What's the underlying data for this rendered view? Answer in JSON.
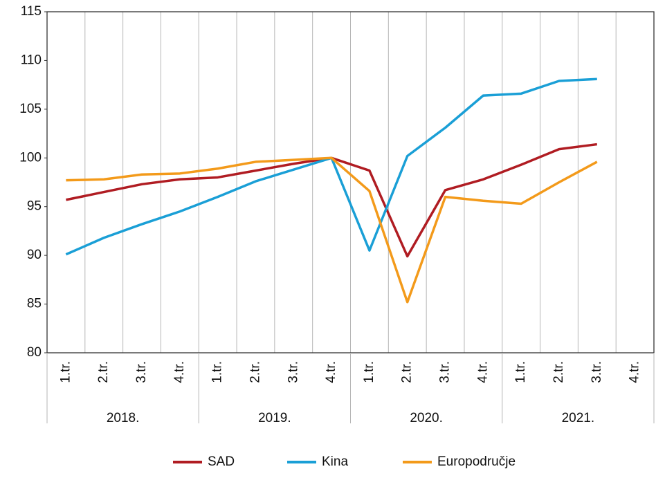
{
  "chart_data": {
    "type": "line",
    "categories": [
      "1.tr.",
      "2.tr.",
      "3.tr.",
      "4.tr.",
      "1.tr.",
      "2.tr.",
      "3.tr.",
      "4.tr.",
      "1.tr.",
      "2.tr.",
      "3.tr.",
      "4.tr.",
      "1.tr.",
      "2.tr.",
      "3.tr.",
      "4.tr."
    ],
    "groups": [
      "2018.",
      "2019.",
      "2020.",
      "2021."
    ],
    "series": [
      {
        "name": "SAD",
        "color": "#b01c22",
        "values": [
          95.7,
          96.5,
          97.3,
          97.8,
          98.0,
          98.7,
          99.4,
          100,
          98.7,
          89.9,
          96.7,
          97.8,
          99.3,
          100.9,
          101.4,
          null
        ]
      },
      {
        "name": "Kina",
        "color": "#1a9fd6",
        "values": [
          90.1,
          91.8,
          93.2,
          94.5,
          96.0,
          97.6,
          98.8,
          100,
          90.5,
          100.2,
          103.1,
          106.4,
          106.6,
          107.9,
          108.1,
          null
        ]
      },
      {
        "name": "Europodručje",
        "color": "#f39a1a",
        "values": [
          97.7,
          97.8,
          98.3,
          98.4,
          98.9,
          99.6,
          99.8,
          100,
          96.6,
          85.2,
          96.0,
          95.6,
          95.3,
          97.5,
          99.6,
          null
        ]
      }
    ],
    "ylim": [
      80,
      115
    ],
    "yticks": [
      80,
      85,
      90,
      95,
      100,
      105,
      110,
      115
    ],
    "grid": "x",
    "legend": "bottom"
  }
}
